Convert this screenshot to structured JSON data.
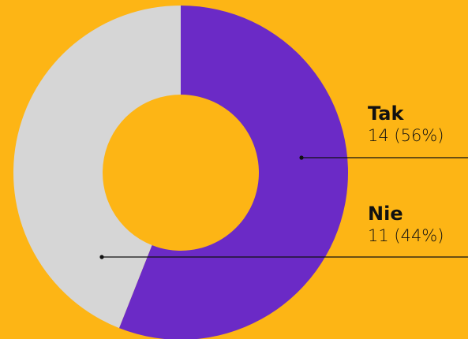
{
  "background": "#FDB515",
  "chart_data": {
    "type": "pie",
    "variant": "donut",
    "categories": [
      "Tak",
      "Nie"
    ],
    "values": [
      14,
      11
    ],
    "percent_labels": [
      "56%",
      "44%"
    ],
    "value_labels": [
      "14 (56%)",
      "11 (44%)"
    ],
    "colors": [
      "#6B2AC6",
      "#D6D6D6"
    ],
    "legend": "right, with leader lines"
  }
}
